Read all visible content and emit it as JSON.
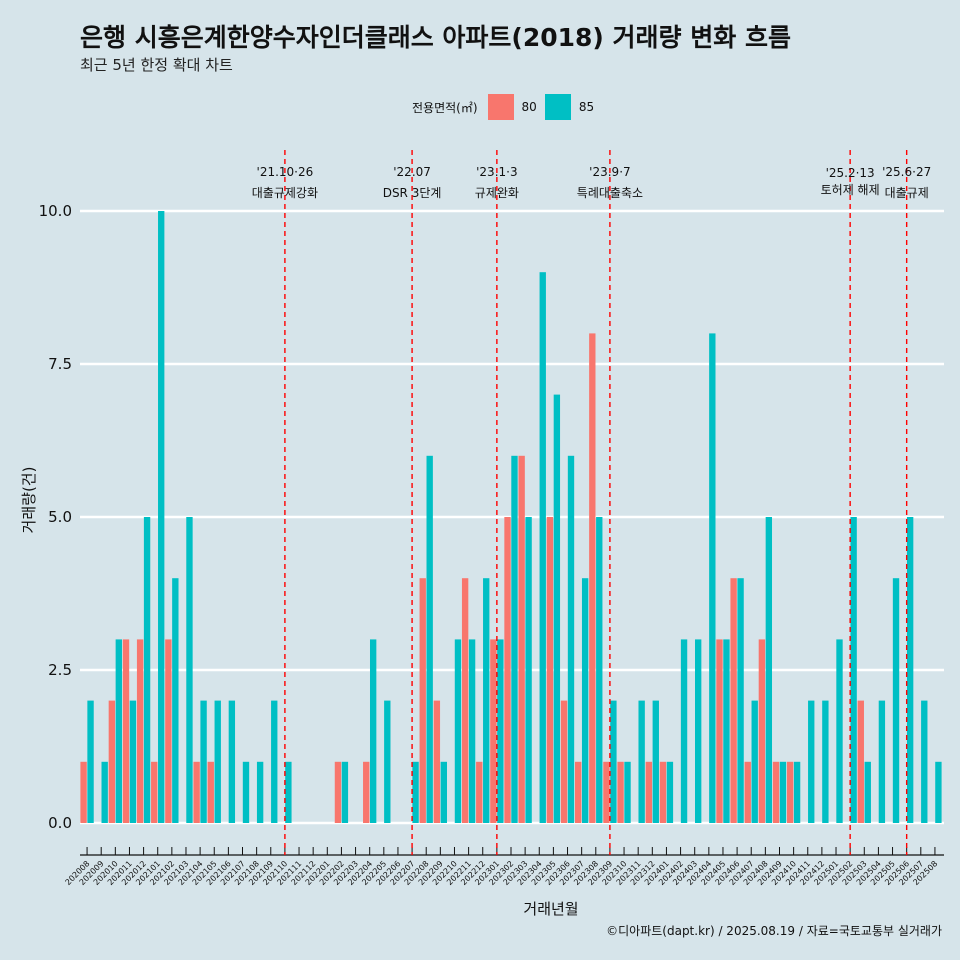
{
  "title": "은행 시흥은계한양수자인더클래스 아파트(2018) 거래량 변화 흐름",
  "subtitle": "최근 5년 한정 확대 차트",
  "caption": "©디아파트(dapt.kr) / 2025.08.19 / 자료=국토교통부 실거래가",
  "legend": {
    "title": "전용면적(㎡)",
    "items": [
      {
        "label": "80",
        "color": "#f8766d"
      },
      {
        "label": "85",
        "color": "#00bfc4"
      }
    ]
  },
  "chart_data": {
    "type": "bar",
    "xlabel": "거래년월",
    "ylabel": "거래량(건)",
    "ylim": [
      0,
      10.5
    ],
    "yticks": [
      "0.0",
      "2.5",
      "5.0",
      "7.5",
      "10.0"
    ],
    "categories": [
      "202008",
      "202009",
      "202010",
      "202011",
      "202012",
      "202101",
      "202102",
      "202103",
      "202104",
      "202105",
      "202106",
      "202107",
      "202108",
      "202109",
      "202110",
      "202111",
      "202112",
      "202201",
      "202202",
      "202203",
      "202204",
      "202205",
      "202206",
      "202207",
      "202208",
      "202209",
      "202210",
      "202211",
      "202212",
      "202301",
      "202302",
      "202303",
      "202304",
      "202305",
      "202306",
      "202307",
      "202308",
      "202309",
      "202310",
      "202311",
      "202312",
      "202401",
      "202402",
      "202403",
      "202404",
      "202405",
      "202406",
      "202407",
      "202408",
      "202409",
      "202410",
      "202411",
      "202412",
      "202501",
      "202502",
      "202503",
      "202504",
      "202505",
      "202506",
      "202507",
      "202508"
    ],
    "series": [
      {
        "name": "80",
        "color": "#f8766d",
        "values": [
          1,
          0,
          2,
          3,
          3,
          1,
          3,
          0,
          1,
          1,
          0,
          0,
          0,
          0,
          0,
          0,
          0,
          0,
          1,
          0,
          1,
          0,
          0,
          0,
          4,
          2,
          0,
          4,
          1,
          3,
          5,
          6,
          0,
          5,
          2,
          1,
          8,
          1,
          1,
          0,
          1,
          1,
          0,
          0,
          0,
          3,
          4,
          1,
          3,
          1,
          1,
          0,
          0,
          0,
          0,
          2,
          0,
          0,
          0,
          0,
          0
        ]
      },
      {
        "name": "85",
        "color": "#00bfc4",
        "values": [
          2,
          1,
          3,
          2,
          5,
          10,
          4,
          5,
          2,
          2,
          2,
          1,
          1,
          2,
          1,
          0,
          0,
          0,
          1,
          0,
          3,
          2,
          0,
          1,
          6,
          1,
          3,
          3,
          4,
          3,
          6,
          5,
          9,
          7,
          6,
          4,
          5,
          2,
          1,
          2,
          2,
          1,
          3,
          3,
          8,
          3,
          4,
          2,
          5,
          1,
          1,
          2,
          2,
          3,
          5,
          1,
          2,
          4,
          5,
          2,
          1
        ]
      }
    ],
    "events": [
      {
        "label_top": "'21.10·26",
        "label_bottom": "대출규제강화",
        "at": "202110",
        "offset": 0.0
      },
      {
        "label_top": "'22.07",
        "label_bottom": "DSR 3단계",
        "at": "202207",
        "offset": 0.0
      },
      {
        "label_top": "'23.1·3",
        "label_bottom": "규제완화",
        "at": "202301",
        "offset": 0.0
      },
      {
        "label_top": "'23.9·7",
        "label_bottom": "특례대출축소",
        "at": "202309",
        "offset": 0.0
      },
      {
        "label_top": "'25.2·13",
        "label_bottom": "토허제 해제",
        "at": "202502",
        "offset": 0.0
      },
      {
        "label_top": "'25.6·27",
        "label_bottom": "대출규제",
        "at": "202506",
        "offset": 0.0
      }
    ],
    "grid": true,
    "legend_position": "top"
  }
}
